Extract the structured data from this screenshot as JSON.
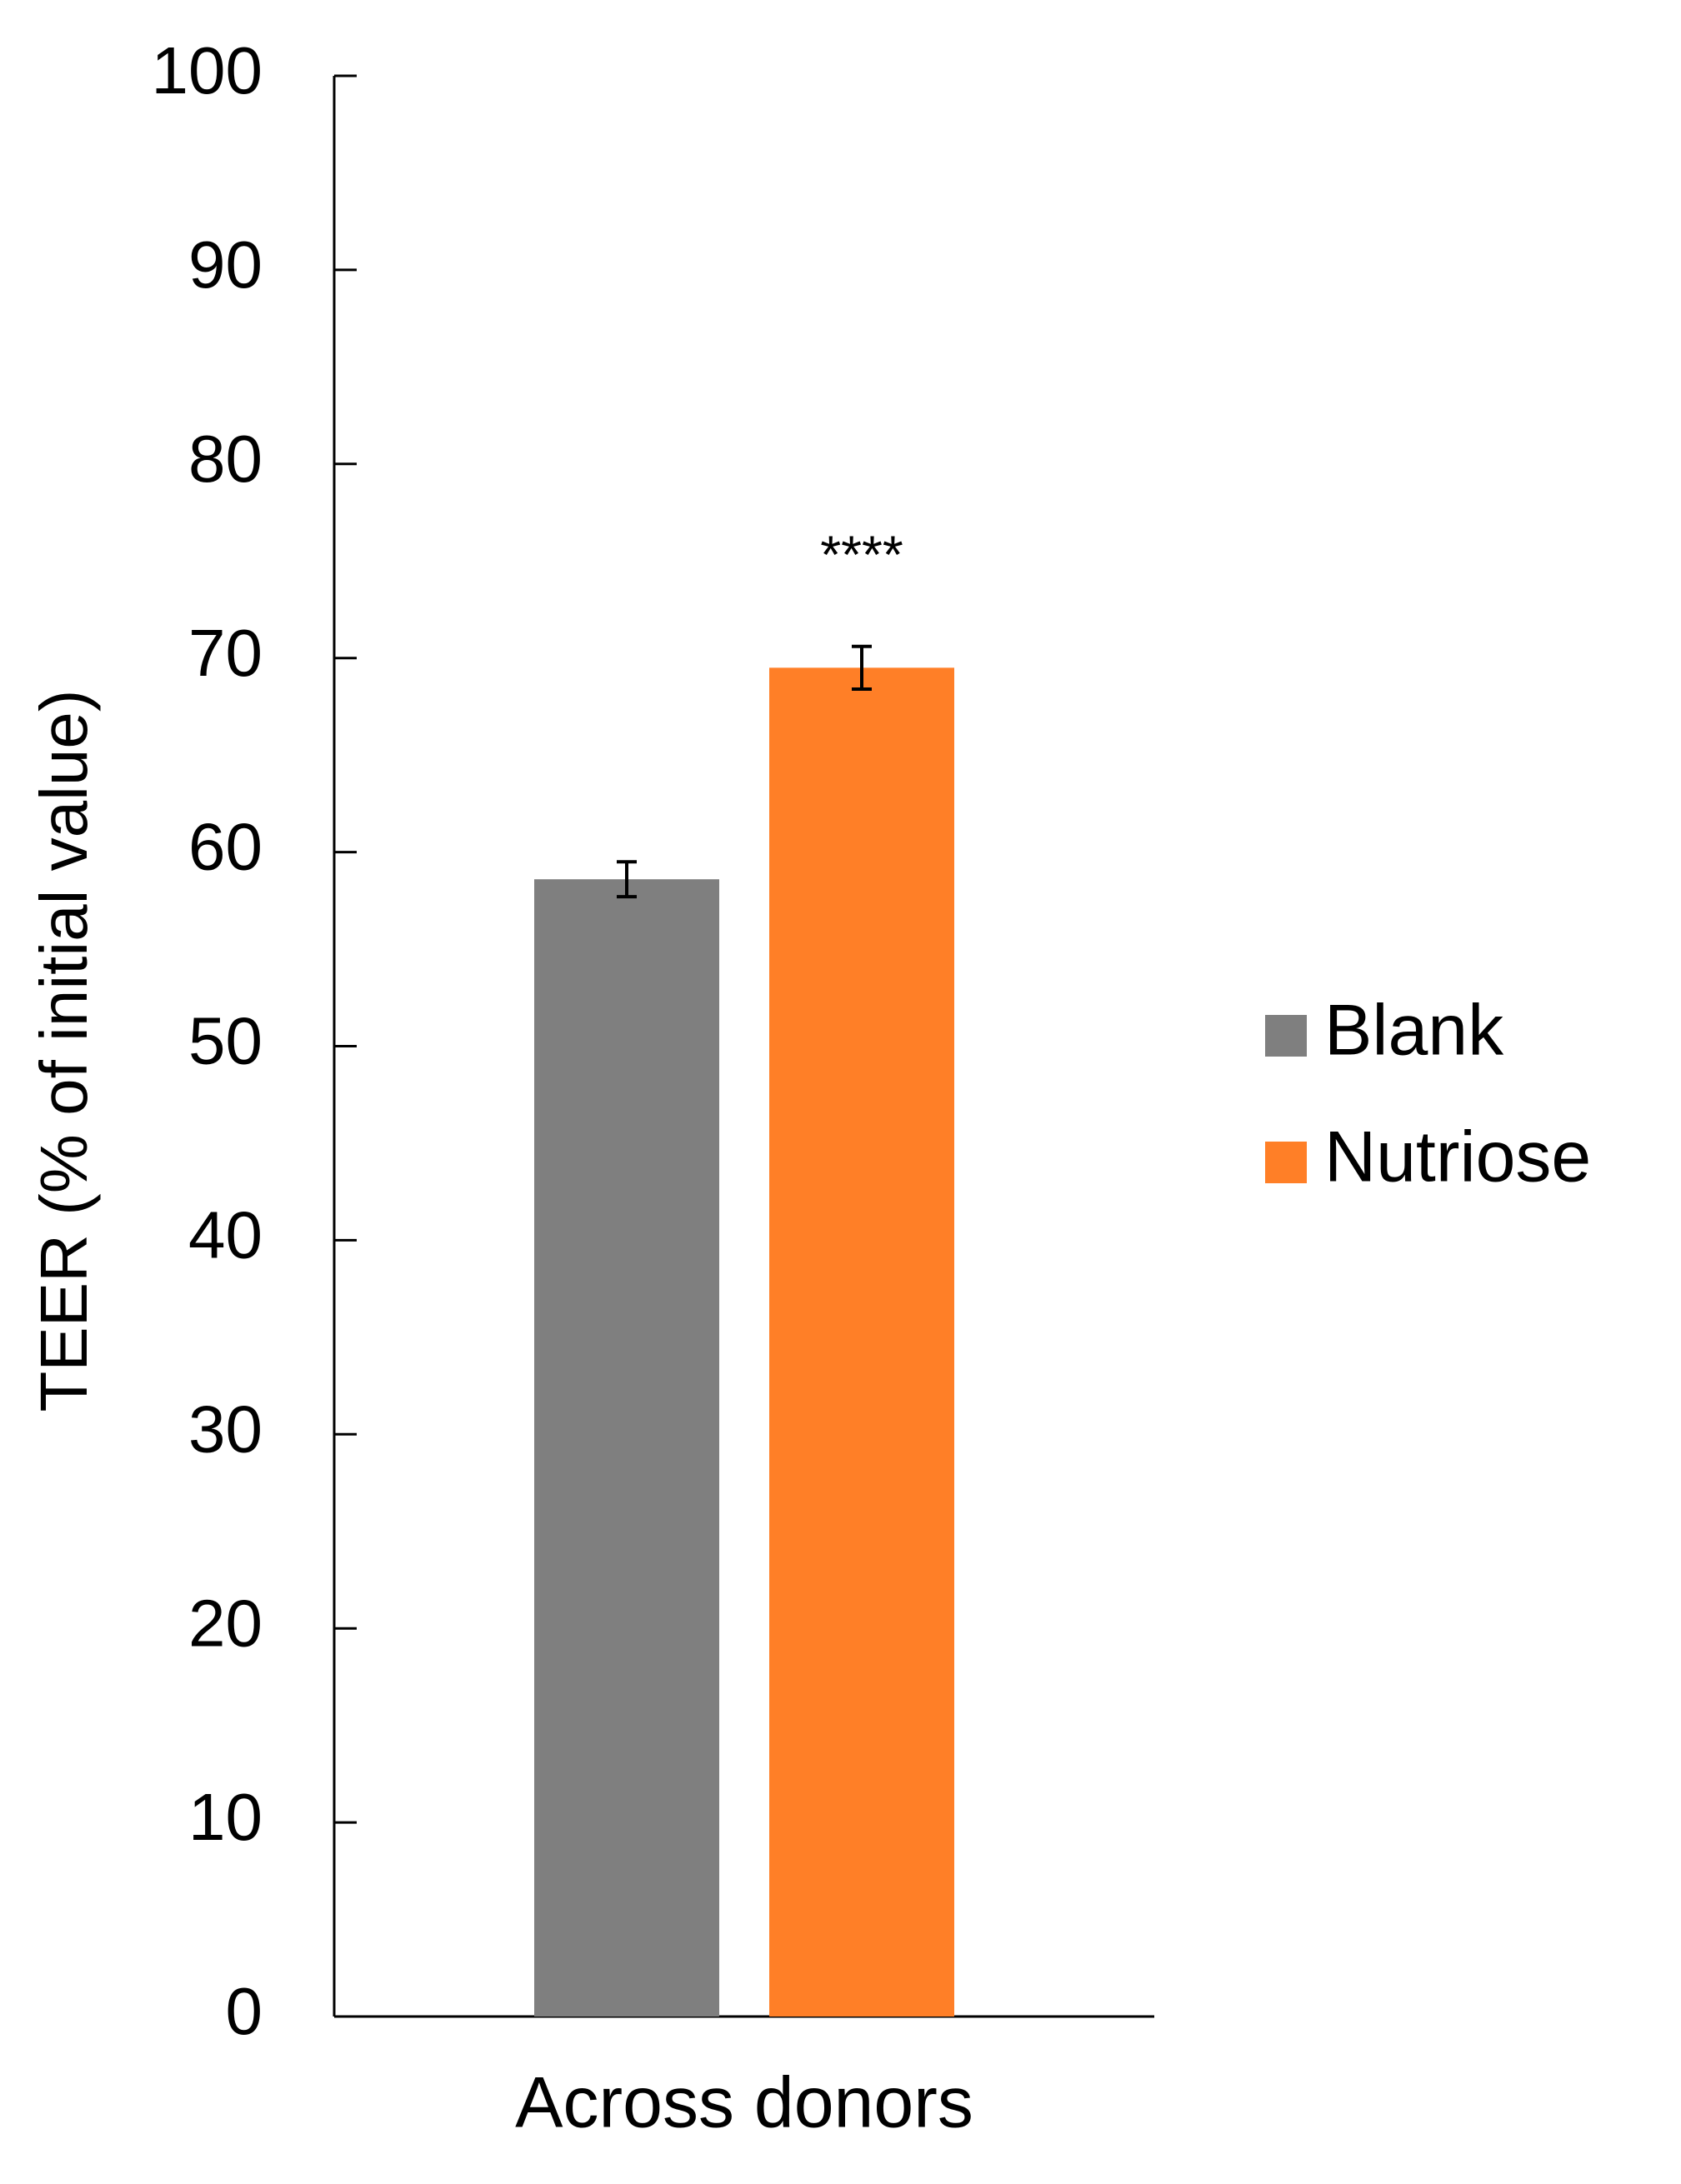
{
  "chart_data": {
    "type": "bar",
    "ylabel": "TEER (% of initial value)",
    "categories": [
      "Across donors"
    ],
    "series": [
      {
        "name": "Blank",
        "color": "#7f7f7f",
        "values": [
          58.6
        ],
        "errors": [
          0.9
        ]
      },
      {
        "name": "Nutriose",
        "color": "#ff7f27",
        "values": [
          69.5
        ],
        "errors": [
          1.1
        ]
      }
    ],
    "annotation": "****",
    "ylim": [
      0,
      100
    ],
    "yticks": [
      0,
      10,
      20,
      30,
      40,
      50,
      60,
      70,
      80,
      90,
      100
    ],
    "grid": false,
    "legend": "right"
  }
}
